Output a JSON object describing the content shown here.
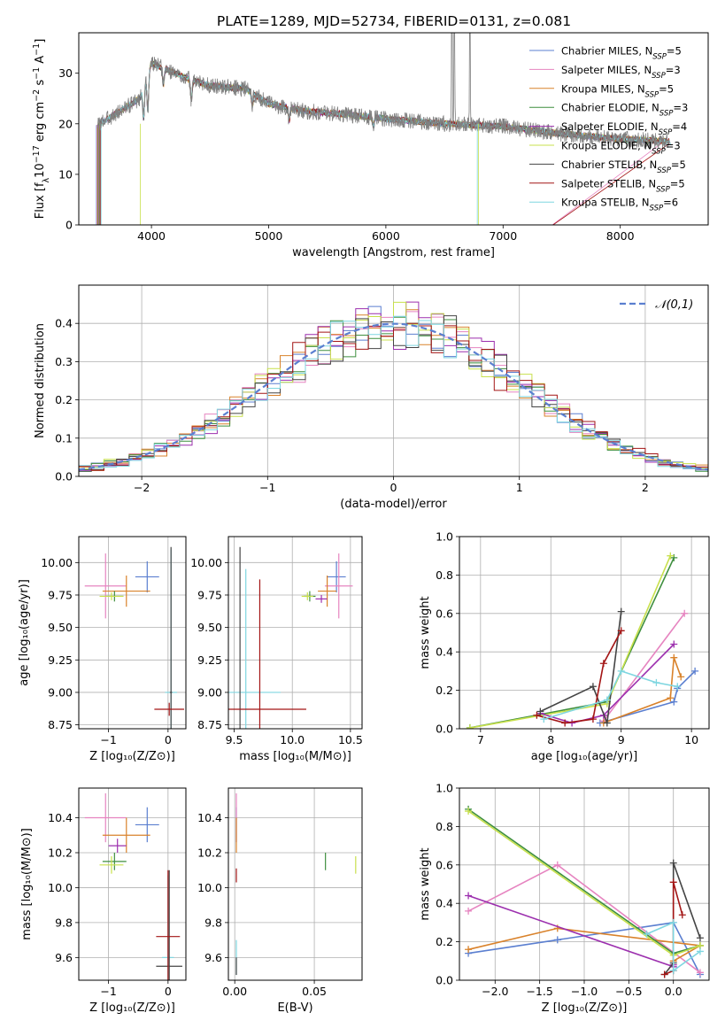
{
  "figure": {
    "title": "PLATE=1289, MJD=52734, FIBERID=0131, z=0.081"
  },
  "chart_data": [
    {
      "id": "spectrum",
      "type": "line",
      "xlabel": "wavelength [Angstrom, rest frame]",
      "ylabel": "Flux [f_λ 10^-17 erg cm^-2 s^-1 A^-1]",
      "xlim": [
        3380,
        8750
      ],
      "ylim": [
        0,
        38
      ],
      "xticks": [
        4000,
        5000,
        6000,
        7000,
        8000
      ],
      "yticks": [
        0,
        10,
        20,
        30
      ],
      "legend_position": "top-right",
      "series": [
        {
          "name": "Chabrier MILES, N_SSP=5",
          "color": "#5b7fd0"
        },
        {
          "name": "Salpeter MILES, N_SSP=3",
          "color": "#e684c0"
        },
        {
          "name": "Kroupa MILES, N_SSP=5",
          "color": "#d9822b"
        },
        {
          "name": "Chabrier ELODIE, N_SSP=3",
          "color": "#3f8f3f"
        },
        {
          "name": "Salpeter ELODIE, N_SSP=4",
          "color": "#9c2fae"
        },
        {
          "name": "Kroupa ELODIE, N_SSP=3",
          "color": "#c8e04c"
        },
        {
          "name": "Chabrier STELIB, N_SSP=5",
          "color": "#444444"
        },
        {
          "name": "Salpeter STELIB, N_SSP=5",
          "color": "#a31515"
        },
        {
          "name": "Kroupa STELIB, N_SSP=6",
          "color": "#7fd6e0"
        }
      ],
      "data_trace": {
        "name": "data",
        "color": "#808080",
        "continuum_x": [
          3550,
          3700,
          3900,
          4000,
          4100,
          4300,
          4500,
          4800,
          5000,
          5300,
          5600,
          6000,
          6500,
          7000,
          7500,
          8000,
          8400
        ],
        "continuum_y": [
          20,
          22,
          25,
          32,
          31,
          29,
          27.5,
          27,
          24,
          22.5,
          22,
          21,
          20,
          19.5,
          18,
          17,
          16.5
        ],
        "absorption_lines_x": [
          3934,
          3969,
          4102,
          4340,
          4861,
          5175,
          5893
        ],
        "absorption_depth": [
          8,
          9,
          4,
          5,
          3,
          3,
          2
        ],
        "emission_lines_x": [
          6563,
          6584,
          6717
        ],
        "emission_peak": [
          38,
          36,
          28
        ]
      }
    },
    {
      "id": "residual_histogram",
      "type": "bar",
      "xlabel": "(data-model)/error",
      "ylabel": "Normed distribution",
      "xlim": [
        -2.5,
        2.5
      ],
      "ylim": [
        0,
        0.5
      ],
      "xticks": [
        -2,
        -1,
        0,
        1,
        2
      ],
      "yticks": [
        0.0,
        0.1,
        0.2,
        0.3,
        0.4
      ],
      "legend": "N(0,1)",
      "normal_curve_color": "#5b7fd0",
      "bin_edges_start": -2.5,
      "bin_width": 0.1,
      "jitter_seed": 7
    },
    {
      "id": "age_vs_Z",
      "type": "scatter",
      "xlabel": "Z [log10(Z/Z_sun)]",
      "ylabel": "age  [log10(age/yr)]",
      "xlim": [
        -1.5,
        0.3
      ],
      "ylim": [
        8.72,
        10.2
      ],
      "xticks": [
        -1,
        0
      ],
      "yticks": [
        8.75,
        9.0,
        9.25,
        9.5,
        9.75,
        10.0
      ],
      "points": [
        {
          "x": -0.35,
          "y": 9.89,
          "xerr": 0.2,
          "yerr": 0.12,
          "color": "#5b7fd0"
        },
        {
          "x": -1.05,
          "y": 9.82,
          "xerr": 0.35,
          "yerr": 0.25,
          "color": "#e684c0"
        },
        {
          "x": -0.7,
          "y": 9.78,
          "xerr": 0.4,
          "yerr": 0.12,
          "color": "#d9822b"
        },
        {
          "x": -0.9,
          "y": 9.74,
          "xerr": 0.15,
          "yerr": 0.04,
          "color": "#3f8f3f"
        },
        {
          "x": -0.95,
          "y": 9.74,
          "xerr": 0.2,
          "yerr": 0.03,
          "color": "#c8e04c"
        },
        {
          "x": 0.05,
          "y": 9.0,
          "xerr": 0.1,
          "yerr": 1.1,
          "color": "#7fd6e0"
        },
        {
          "x": 0.05,
          "y": 9.0,
          "xerr": 0.02,
          "yerr": 1.12,
          "color": "#444444"
        },
        {
          "x": 0.02,
          "y": 8.87,
          "xerr": 0.25,
          "yerr": 0.05,
          "color": "#a31515"
        }
      ]
    },
    {
      "id": "age_vs_mass",
      "type": "scatter",
      "xlabel": "mass [log10(M/M_sun)]",
      "ylabel": "",
      "xlim": [
        9.45,
        10.6
      ],
      "ylim": [
        8.72,
        10.2
      ],
      "xticks": [
        9.5,
        10.0,
        10.5
      ],
      "yticks": [
        8.75,
        9.0,
        9.25,
        9.5,
        9.75,
        10.0
      ],
      "points": [
        {
          "x": 10.38,
          "y": 9.89,
          "xerr": 0.08,
          "yerr": 0.12,
          "color": "#5b7fd0"
        },
        {
          "x": 10.4,
          "y": 9.82,
          "xerr": 0.12,
          "yerr": 0.25,
          "color": "#e684c0"
        },
        {
          "x": 10.3,
          "y": 9.78,
          "xerr": 0.08,
          "yerr": 0.12,
          "color": "#d9822b"
        },
        {
          "x": 10.15,
          "y": 9.74,
          "xerr": 0.05,
          "yerr": 0.04,
          "color": "#3f8f3f"
        },
        {
          "x": 10.13,
          "y": 9.74,
          "xerr": 0.05,
          "yerr": 0.03,
          "color": "#c8e04c"
        },
        {
          "x": 10.25,
          "y": 9.72,
          "xerr": 0.05,
          "yerr": 0.03,
          "color": "#9c2fae"
        },
        {
          "x": 9.6,
          "y": 9.0,
          "xerr": 0.3,
          "yerr": 0.95,
          "color": "#7fd6e0"
        },
        {
          "x": 9.55,
          "y": 9.0,
          "xerr": 0.0,
          "yerr": 1.12,
          "color": "#444444"
        },
        {
          "x": 9.72,
          "y": 8.87,
          "xerr": 0.4,
          "yerr": 1.0,
          "color": "#a31515"
        }
      ]
    },
    {
      "id": "massweight_vs_age",
      "type": "line",
      "xlabel": "age  [log10(age/yr)]",
      "ylabel": "mass weight",
      "xlim": [
        6.7,
        10.25
      ],
      "ylim": [
        0,
        1.0
      ],
      "xticks": [
        7,
        8,
        9,
        10
      ],
      "yticks": [
        0.0,
        0.2,
        0.4,
        0.6,
        0.8,
        1.0
      ],
      "series": [
        {
          "color": "#5b7fd0",
          "x": [
            8.7,
            9.75,
            9.8,
            10.05
          ],
          "y": [
            0.03,
            0.14,
            0.21,
            0.3
          ]
        },
        {
          "color": "#e684c0",
          "x": [
            8.75,
            9.9
          ],
          "y": [
            0.04,
            0.6
          ]
        },
        {
          "color": "#d9822b",
          "x": [
            8.75,
            9.7,
            9.75,
            9.85
          ],
          "y": [
            0.03,
            0.16,
            0.37,
            0.27
          ]
        },
        {
          "color": "#3f8f3f",
          "x": [
            6.85,
            8.8,
            9.75
          ],
          "y": [
            0.005,
            0.14,
            0.89
          ]
        },
        {
          "color": "#c8e04c",
          "x": [
            6.85,
            8.8,
            9.7
          ],
          "y": [
            0.004,
            0.13,
            0.9
          ]
        },
        {
          "color": "#9c2fae",
          "x": [
            7.85,
            8.3,
            8.75,
            9.75
          ],
          "y": [
            0.08,
            0.03,
            0.07,
            0.44
          ]
        },
        {
          "color": "#444444",
          "x": [
            7.85,
            8.6,
            8.8,
            9.0
          ],
          "y": [
            0.09,
            0.22,
            0.03,
            0.61
          ]
        },
        {
          "color": "#a31515",
          "x": [
            7.8,
            8.2,
            8.6,
            8.75,
            9.0
          ],
          "y": [
            0.07,
            0.03,
            0.05,
            0.34,
            0.51
          ]
        },
        {
          "color": "#7fd6e0",
          "x": [
            7.9,
            8.8,
            9.0,
            9.5,
            9.8
          ],
          "y": [
            0.05,
            0.15,
            0.3,
            0.24,
            0.22
          ]
        }
      ]
    },
    {
      "id": "mass_vs_Z",
      "type": "scatter",
      "xlabel": "Z [log10(Z/Z_sun)]",
      "ylabel": "mass [log10(M/M_sun)]",
      "xlim": [
        -1.5,
        0.3
      ],
      "ylim": [
        9.47,
        10.57
      ],
      "xticks": [
        -1,
        0
      ],
      "yticks": [
        9.6,
        9.8,
        10.0,
        10.2,
        10.4
      ],
      "points": [
        {
          "x": -0.35,
          "y": 10.36,
          "xerr": 0.2,
          "yerr": 0.1,
          "color": "#5b7fd0"
        },
        {
          "x": -1.05,
          "y": 10.4,
          "xerr": 0.35,
          "yerr": 0.14,
          "color": "#e684c0"
        },
        {
          "x": -0.7,
          "y": 10.3,
          "xerr": 0.4,
          "yerr": 0.1,
          "color": "#d9822b"
        },
        {
          "x": -0.9,
          "y": 10.15,
          "xerr": 0.2,
          "yerr": 0.05,
          "color": "#3f8f3f"
        },
        {
          "x": -0.95,
          "y": 10.13,
          "xerr": 0.2,
          "yerr": 0.05,
          "color": "#c8e04c"
        },
        {
          "x": -0.85,
          "y": 10.24,
          "xerr": 0.15,
          "yerr": 0.04,
          "color": "#9c2fae"
        },
        {
          "x": 0.0,
          "y": 9.6,
          "xerr": 0.1,
          "yerr": 0.47,
          "color": "#7fd6e0"
        },
        {
          "x": 0.02,
          "y": 9.55,
          "xerr": 0.22,
          "yerr": 0.55,
          "color": "#444444"
        },
        {
          "x": 0.0,
          "y": 9.72,
          "xerr": 0.2,
          "yerr": 0.38,
          "color": "#a31515"
        }
      ]
    },
    {
      "id": "mass_vs_EBV",
      "type": "scatter",
      "xlabel": "E(B-V)",
      "ylabel": "",
      "xlim": [
        -0.004,
        0.08
      ],
      "ylim": [
        9.47,
        10.57
      ],
      "xticks": [
        0.0,
        0.05
      ],
      "yticks": [
        9.6,
        9.8,
        10.0,
        10.2,
        10.4
      ],
      "points": [
        {
          "x": 0.001,
          "y": 10.36,
          "yerr": 0.1,
          "color": "#5b7fd0"
        },
        {
          "x": 0.001,
          "y": 10.4,
          "yerr": 0.14,
          "color": "#e684c0"
        },
        {
          "x": 0.001,
          "y": 10.3,
          "yerr": 0.1,
          "color": "#d9822b"
        },
        {
          "x": 0.057,
          "y": 10.15,
          "yerr": 0.05,
          "color": "#3f8f3f"
        },
        {
          "x": 0.076,
          "y": 10.13,
          "yerr": 0.05,
          "color": "#c8e04c"
        },
        {
          "x": 0.001,
          "y": 9.6,
          "yerr": 0.1,
          "color": "#7fd6e0"
        },
        {
          "x": 0.001,
          "y": 9.55,
          "yerr": 0.05,
          "color": "#444444"
        },
        {
          "x": 0.001,
          "y": 10.07,
          "yerr": 0.04,
          "color": "#a31515"
        }
      ]
    },
    {
      "id": "massweight_vs_Z",
      "type": "line",
      "xlabel": "Z [log10(Z/Z_sun)]",
      "ylabel": "mass weight",
      "xlim": [
        -2.4,
        0.4
      ],
      "ylim": [
        0,
        1.0
      ],
      "xticks": [
        -2.0,
        -1.5,
        -1.0,
        -0.5,
        0.0
      ],
      "yticks": [
        0.0,
        0.2,
        0.4,
        0.6,
        0.8,
        1.0
      ],
      "series": [
        {
          "color": "#5b7fd0",
          "x": [
            -2.3,
            -1.3,
            0.0,
            0.3
          ],
          "y": [
            0.14,
            0.21,
            0.3,
            0.03
          ]
        },
        {
          "color": "#e684c0",
          "x": [
            -2.3,
            -1.3,
            0.3
          ],
          "y": [
            0.36,
            0.6,
            0.04
          ]
        },
        {
          "color": "#d9822b",
          "x": [
            -2.3,
            -1.3,
            0.3,
            0.0
          ],
          "y": [
            0.16,
            0.27,
            0.18,
            0.1
          ]
        },
        {
          "color": "#3f8f3f",
          "x": [
            -2.3,
            0.0,
            0.3
          ],
          "y": [
            0.89,
            0.14,
            0.18
          ]
        },
        {
          "color": "#c8e04c",
          "x": [
            -2.3,
            0.0,
            0.3
          ],
          "y": [
            0.88,
            0.13,
            0.18
          ]
        },
        {
          "color": "#9c2fae",
          "x": [
            -2.3,
            0.0,
            0.0
          ],
          "y": [
            0.44,
            0.07,
            0.08
          ]
        },
        {
          "color": "#444444",
          "x": [
            -0.1,
            0.0,
            0.0,
            0.3
          ],
          "y": [
            0.03,
            0.09,
            0.61,
            0.22
          ]
        },
        {
          "color": "#a31515",
          "x": [
            -0.1,
            0.0,
            0.0,
            0.1
          ],
          "y": [
            0.03,
            0.05,
            0.51,
            0.34
          ]
        },
        {
          "color": "#7fd6e0",
          "x": [
            -0.3,
            0.0,
            0.0,
            0.3
          ],
          "y": [
            0.24,
            0.3,
            0.05,
            0.15
          ]
        }
      ]
    }
  ]
}
